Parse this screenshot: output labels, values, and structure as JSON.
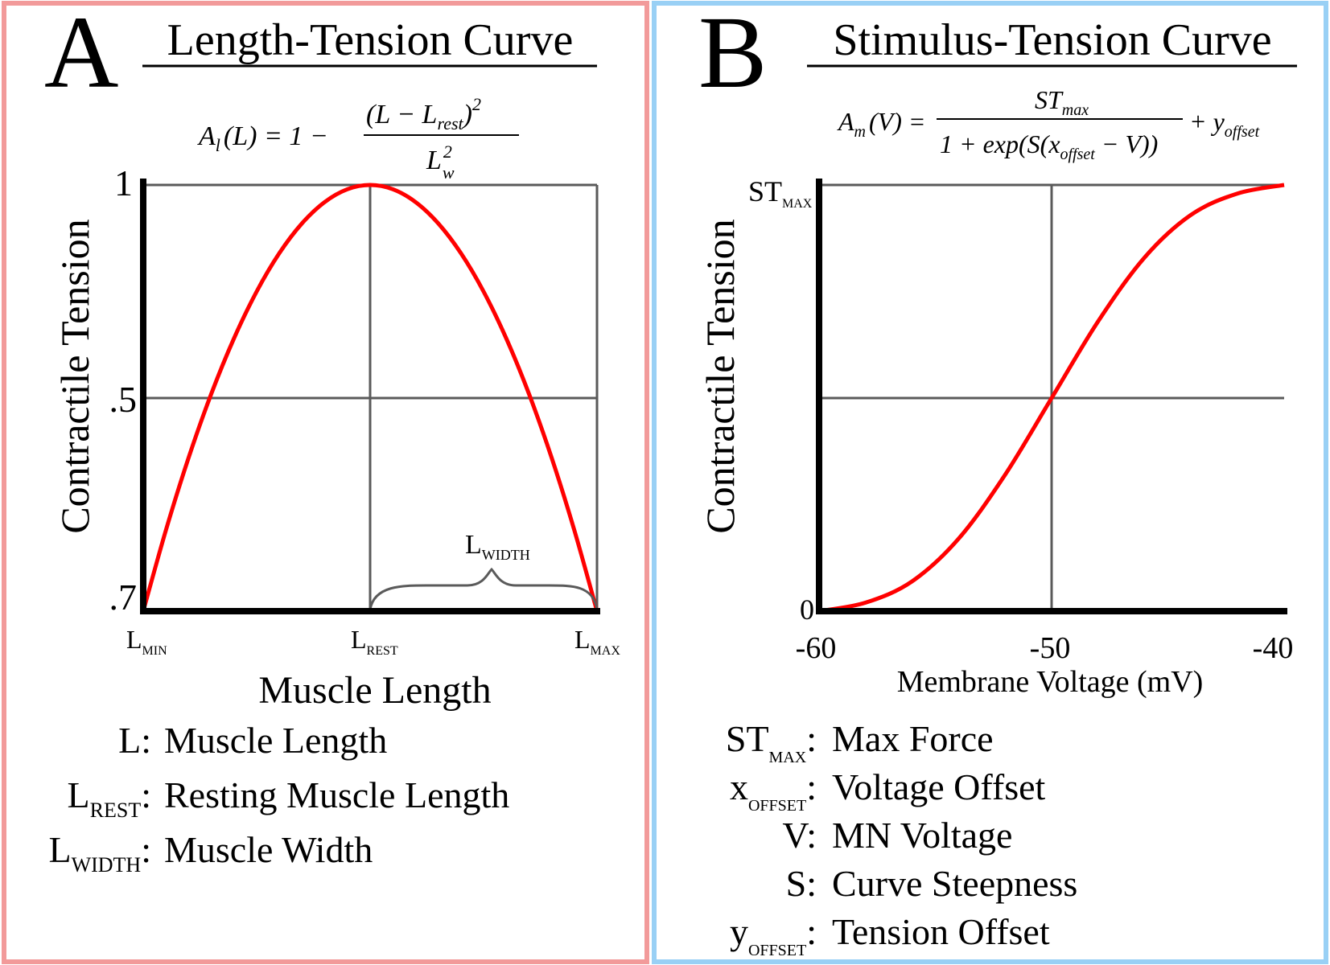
{
  "colors": {
    "panel_a_border": "#f29a9a",
    "panel_b_border": "#99d0f5",
    "curve": "#ff0000",
    "grid": "#5a5a5a",
    "axis": "#000000"
  },
  "panel_a": {
    "letter": "A",
    "title": "Length-Tension Curve",
    "equation": {
      "lhs": "A",
      "lhs_sub": "l",
      "lhs_arg": "(L) = 1 −",
      "num_open": "(L − L",
      "num_sub": "rest",
      "num_close": ")",
      "num_exp": "2",
      "den_main": "L",
      "den_sup": "2",
      "den_sub": "w"
    },
    "y_title": "Contractile Tension",
    "y_ticks": [
      "1",
      ".5",
      ".7"
    ],
    "x_ticks": [
      {
        "main": "L",
        "sub": "MIN"
      },
      {
        "main": "L",
        "sub": "REST"
      },
      {
        "main": "L",
        "sub": "MAX"
      }
    ],
    "x_title": "Muscle Length",
    "brace_label": {
      "main": "L",
      "sub": "WIDTH"
    },
    "legend": [
      {
        "sym": "L",
        "sub": "",
        "sep": ":",
        "desc": "Muscle Length"
      },
      {
        "sym": "L",
        "sub": "REST",
        "sep": ":",
        "desc": "Resting Muscle Length"
      },
      {
        "sym": "L",
        "sub": "WIDTH",
        "sep": ":",
        "desc": "Muscle Width"
      }
    ]
  },
  "panel_b": {
    "letter": "B",
    "title": "Stimulus-Tension Curve",
    "equation": {
      "lhs": "A",
      "lhs_sub": "m",
      "lhs_arg": "(V) =",
      "num_main": "ST",
      "num_sub": "max",
      "den_a": "1 + exp(S(x",
      "den_sub": "offset",
      "den_b": " − V))",
      "tail_a": "+ y",
      "tail_sub": "offset"
    },
    "y_title": "Contractile Tension",
    "y_tick_top": {
      "main": "ST",
      "sub": "MAX"
    },
    "y_tick_bottom": "0",
    "x_ticks": [
      "-60",
      "-50",
      "-40"
    ],
    "x_title": "Membrane Voltage (mV)",
    "legend": [
      {
        "sym": "ST",
        "sub": "MAX",
        "sep": ":",
        "desc": "Max Force"
      },
      {
        "sym": "x",
        "sub": "OFFSET",
        "sep": ":",
        "desc": "Voltage Offset"
      },
      {
        "sym": "V",
        "sub": "",
        "sep": ":",
        "desc": "MN Voltage"
      },
      {
        "sym": "S",
        "sub": "",
        "sep": ":",
        "desc": "Curve Steepness"
      },
      {
        "sym": "y",
        "sub": "OFFSET",
        "sep": ":",
        "desc": "Tension Offset"
      }
    ]
  },
  "chart_data": [
    {
      "type": "line",
      "title": "Length-Tension Curve",
      "xlabel": "Muscle Length",
      "ylabel": "Contractile Tension",
      "x_tick_labels": [
        "LMIN",
        "LREST",
        "LMAX"
      ],
      "y_tick_labels": [
        "1",
        ".5",
        ".7"
      ],
      "xlim": [
        -1,
        1
      ],
      "ylim": [
        0,
        1
      ],
      "grid": true,
      "series": [
        {
          "x": [
            -1,
            -0.9,
            -0.8,
            -0.7,
            -0.6,
            -0.5,
            -0.4,
            -0.3,
            -0.2,
            -0.1,
            0,
            0.1,
            0.2,
            0.3,
            0.4,
            0.5,
            0.6,
            0.7,
            0.8,
            0.9,
            1
          ],
          "values": [
            0,
            0.19,
            0.36,
            0.51,
            0.64,
            0.75,
            0.84,
            0.91,
            0.96,
            0.99,
            1,
            0.99,
            0.96,
            0.91,
            0.84,
            0.75,
            0.64,
            0.51,
            0.36,
            0.19,
            0
          ]
        }
      ]
    },
    {
      "type": "line",
      "title": "Stimulus-Tension Curve",
      "xlabel": "Membrane Voltage (mV)",
      "ylabel": "Contractile Tension",
      "x_tick_labels": [
        "-60",
        "-50",
        "-40"
      ],
      "y_tick_labels": [
        "STMAX",
        "0"
      ],
      "xlim": [
        -60,
        -40
      ],
      "ylim": [
        0,
        1
      ],
      "grid": true,
      "series": [
        {
          "x": [
            -60,
            -58,
            -56,
            -54,
            -52,
            -50,
            -48,
            -46,
            -44,
            -42,
            -40
          ],
          "values": [
            0,
            0.02,
            0.07,
            0.17,
            0.32,
            0.5,
            0.68,
            0.83,
            0.93,
            0.98,
            1
          ]
        }
      ]
    }
  ]
}
